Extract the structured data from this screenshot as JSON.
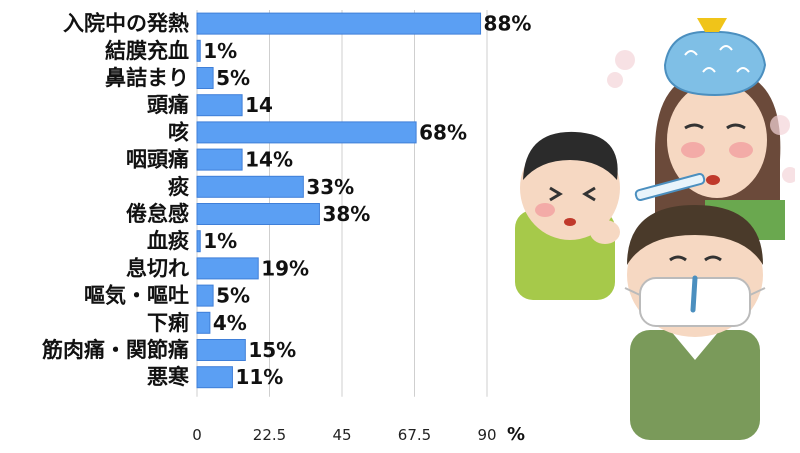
{
  "chart_data": {
    "type": "bar",
    "orientation": "horizontal",
    "categories": [
      "入院中の発熱",
      "結膜充血",
      "鼻詰まり",
      "頭痛",
      "咳",
      "咽頭痛",
      "痰",
      "倦怠感",
      "血痰",
      "息切れ",
      "嘔気・嘔吐",
      "下痢",
      "筋肉痛・関節痛",
      "悪寒"
    ],
    "values": [
      88,
      1,
      5,
      14,
      68,
      14,
      33,
      38,
      1,
      19,
      5,
      4,
      15,
      11
    ],
    "value_labels": [
      "88%",
      "1%",
      "5%",
      "14",
      "68%",
      "14%",
      "33%",
      "38%",
      "1%",
      "19%",
      "5%",
      "4%",
      "15%",
      "11%"
    ],
    "xticks": [
      "0",
      "22.5",
      "45",
      "67.5",
      "90"
    ],
    "xunit": "%",
    "xlim": [
      0,
      90
    ],
    "grid": true,
    "bar_color": "#5b9ff3"
  },
  "illustration": {
    "icon": "sick-people-illustration"
  }
}
